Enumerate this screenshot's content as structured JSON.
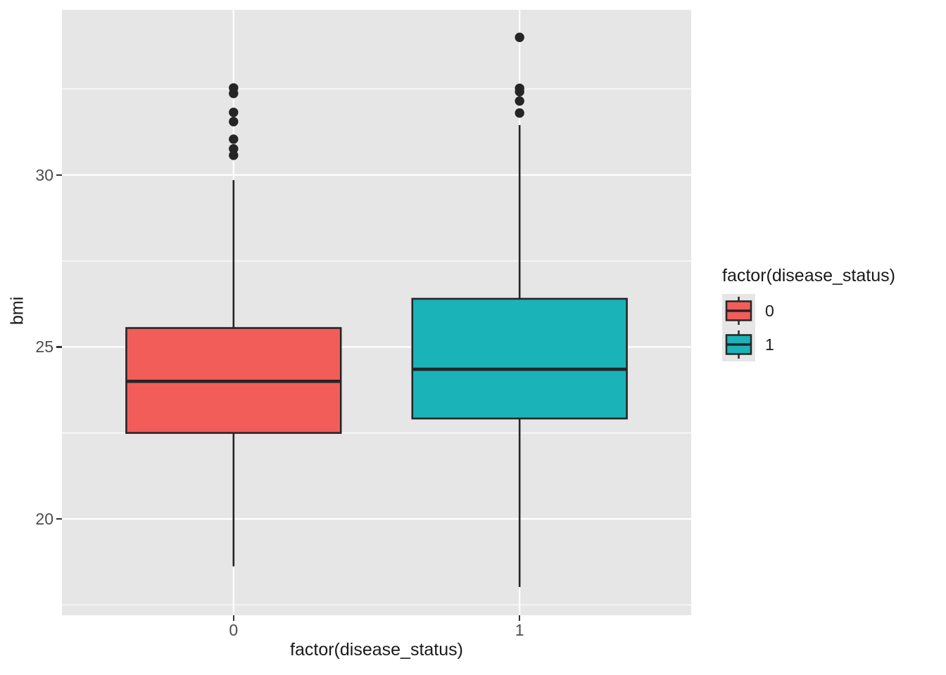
{
  "chart_data": {
    "type": "boxplot",
    "title": "",
    "xlabel": "factor(disease_status)",
    "ylabel": "bmi",
    "categories": [
      "0",
      "1"
    ],
    "y_ticks": [
      20,
      25,
      30
    ],
    "y_minor_ticks": [
      17.5,
      22.5,
      27.5,
      32.5
    ],
    "ylim": [
      17.2,
      34.8
    ],
    "grid": "on",
    "series": [
      {
        "name": "0",
        "fill": "#F25D5A",
        "whisker_low": 18.62,
        "q1": 22.5,
        "median": 24.0,
        "q3": 25.55,
        "whisker_high": 29.85,
        "outliers": [
          30.57,
          30.76,
          31.04,
          31.55,
          31.82,
          32.37,
          32.53
        ]
      },
      {
        "name": "1",
        "fill": "#1AB3B7",
        "whisker_low": 18.02,
        "q1": 22.92,
        "median": 24.35,
        "q3": 26.4,
        "whisker_high": 31.45,
        "outliers": [
          31.8,
          32.15,
          32.42,
          32.52,
          34.0
        ]
      }
    ],
    "legend": {
      "title": "factor(disease_status)",
      "position": "right",
      "entries": [
        {
          "label": "0",
          "fill": "#F25D5A"
        },
        {
          "label": "1",
          "fill": "#1AB3B7"
        }
      ]
    },
    "colors": {
      "panel_bg": "#E6E6E6",
      "grid": "#FFFFFF",
      "box_stroke": "#262626",
      "outlier": "#252525",
      "tick_label": "#4D4D4D",
      "title_text": "#1A1A1A"
    }
  }
}
